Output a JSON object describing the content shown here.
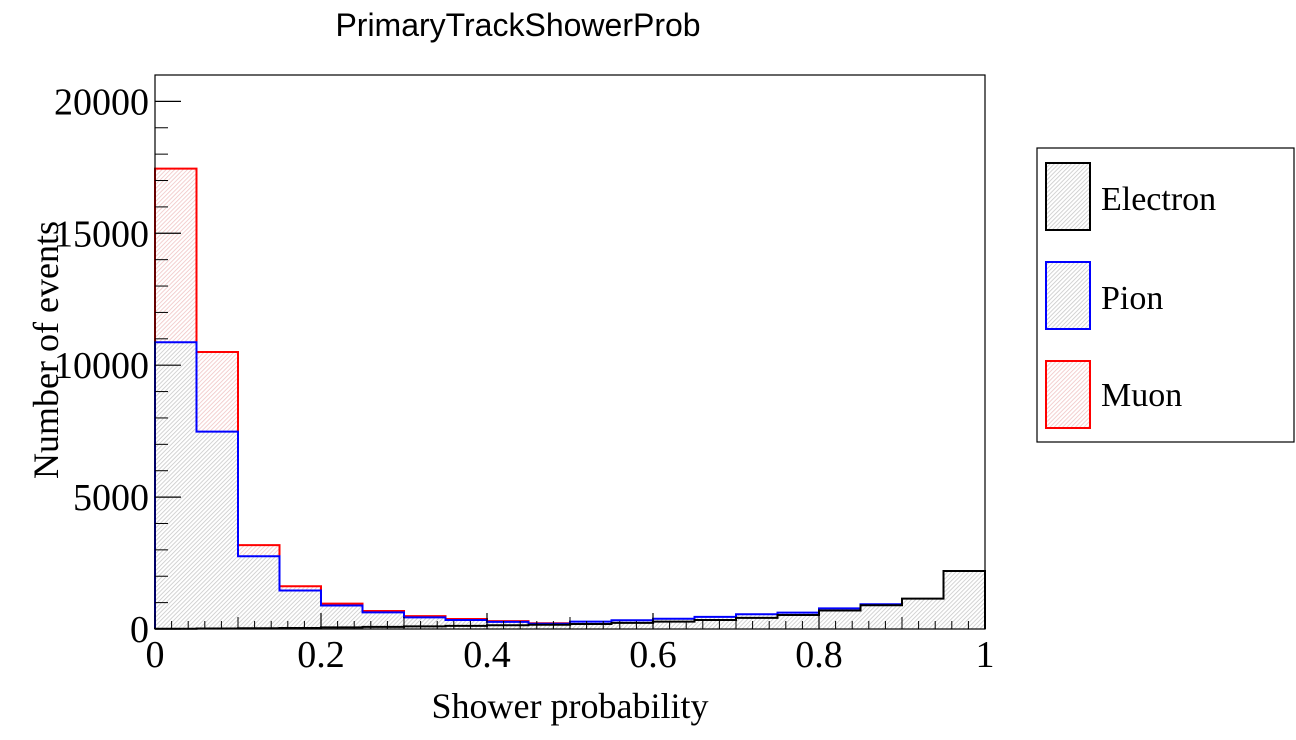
{
  "chart_data": {
    "type": "histogram",
    "title": "PrimaryTrackShowerProb",
    "xlabel": "Shower probability",
    "ylabel": "Number of events",
    "xlim": [
      0,
      1
    ],
    "ylim": [
      0,
      21000
    ],
    "bin_width": 0.05,
    "x_ticks": [
      0,
      0.2,
      0.4,
      0.6,
      0.8,
      1
    ],
    "x_tick_labels": [
      "0",
      "0.2",
      "0.4",
      "0.6",
      "0.8",
      "1"
    ],
    "y_ticks": [
      0,
      5000,
      10000,
      15000,
      20000
    ],
    "y_tick_labels": [
      "0",
      "5000",
      "10000",
      "15000",
      "20000"
    ],
    "grid": false,
    "legend_position": "right",
    "bin_edges": [
      0,
      0.05,
      0.1,
      0.15,
      0.2,
      0.25,
      0.3,
      0.35,
      0.4,
      0.45,
      0.5,
      0.55,
      0.6,
      0.65,
      0.7,
      0.75,
      0.8,
      0.85,
      0.9,
      0.95,
      1.0
    ],
    "series": [
      {
        "name": "Muon",
        "color": "#ff0000",
        "values": [
          17450,
          10500,
          3180,
          1620,
          960,
          680,
          490,
          380,
          300,
          220,
          240,
          260,
          320,
          360,
          430,
          510,
          620,
          800,
          1000,
          1230
        ]
      },
      {
        "name": "Pion",
        "color": "#0000ff",
        "values": [
          10870,
          7480,
          2760,
          1460,
          890,
          630,
          440,
          340,
          270,
          200,
          280,
          330,
          390,
          460,
          560,
          620,
          780,
          940,
          1120,
          1250
        ]
      },
      {
        "name": "Electron",
        "color": "#000000",
        "values": [
          10,
          20,
          30,
          40,
          60,
          80,
          100,
          120,
          140,
          160,
          190,
          230,
          280,
          340,
          420,
          530,
          700,
          900,
          1150,
          2200
        ]
      }
    ]
  },
  "legend": {
    "items": [
      {
        "label": "Electron",
        "color": "#000000"
      },
      {
        "label": "Pion",
        "color": "#0000ff"
      },
      {
        "label": "Muon",
        "color": "#ff0000"
      }
    ]
  }
}
